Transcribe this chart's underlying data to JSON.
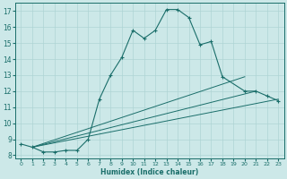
{
  "xlabel": "Humidex (Indice chaleur)",
  "bg_color": "#cce8e8",
  "line_color": "#1a6e6a",
  "grid_color": "#aed4d4",
  "xlim": [
    -0.5,
    23.5
  ],
  "ylim": [
    7.8,
    17.5
  ],
  "xticks": [
    0,
    1,
    2,
    3,
    4,
    5,
    6,
    7,
    8,
    9,
    10,
    11,
    12,
    13,
    14,
    15,
    16,
    17,
    18,
    19,
    20,
    21,
    22,
    23
  ],
  "yticks": [
    8,
    9,
    10,
    11,
    12,
    13,
    14,
    15,
    16,
    17
  ],
  "main_line": {
    "x": [
      0,
      1,
      2,
      3,
      4,
      5,
      6,
      7,
      8,
      9,
      10,
      11,
      12,
      13,
      14,
      15,
      16,
      17,
      18,
      20,
      21,
      22,
      23
    ],
    "y": [
      8.7,
      8.5,
      8.2,
      8.2,
      8.3,
      8.3,
      9.0,
      11.5,
      13.0,
      14.1,
      15.8,
      15.3,
      15.8,
      17.1,
      17.1,
      16.6,
      14.9,
      15.1,
      12.9,
      12.0,
      12.0,
      11.7,
      11.4
    ]
  },
  "line2": {
    "x": [
      1,
      23
    ],
    "y": [
      8.5,
      11.5
    ]
  },
  "line3": {
    "x": [
      1,
      20
    ],
    "y": [
      8.5,
      12.9
    ]
  },
  "line4": {
    "x": [
      1,
      21
    ],
    "y": [
      8.5,
      12.0
    ]
  }
}
